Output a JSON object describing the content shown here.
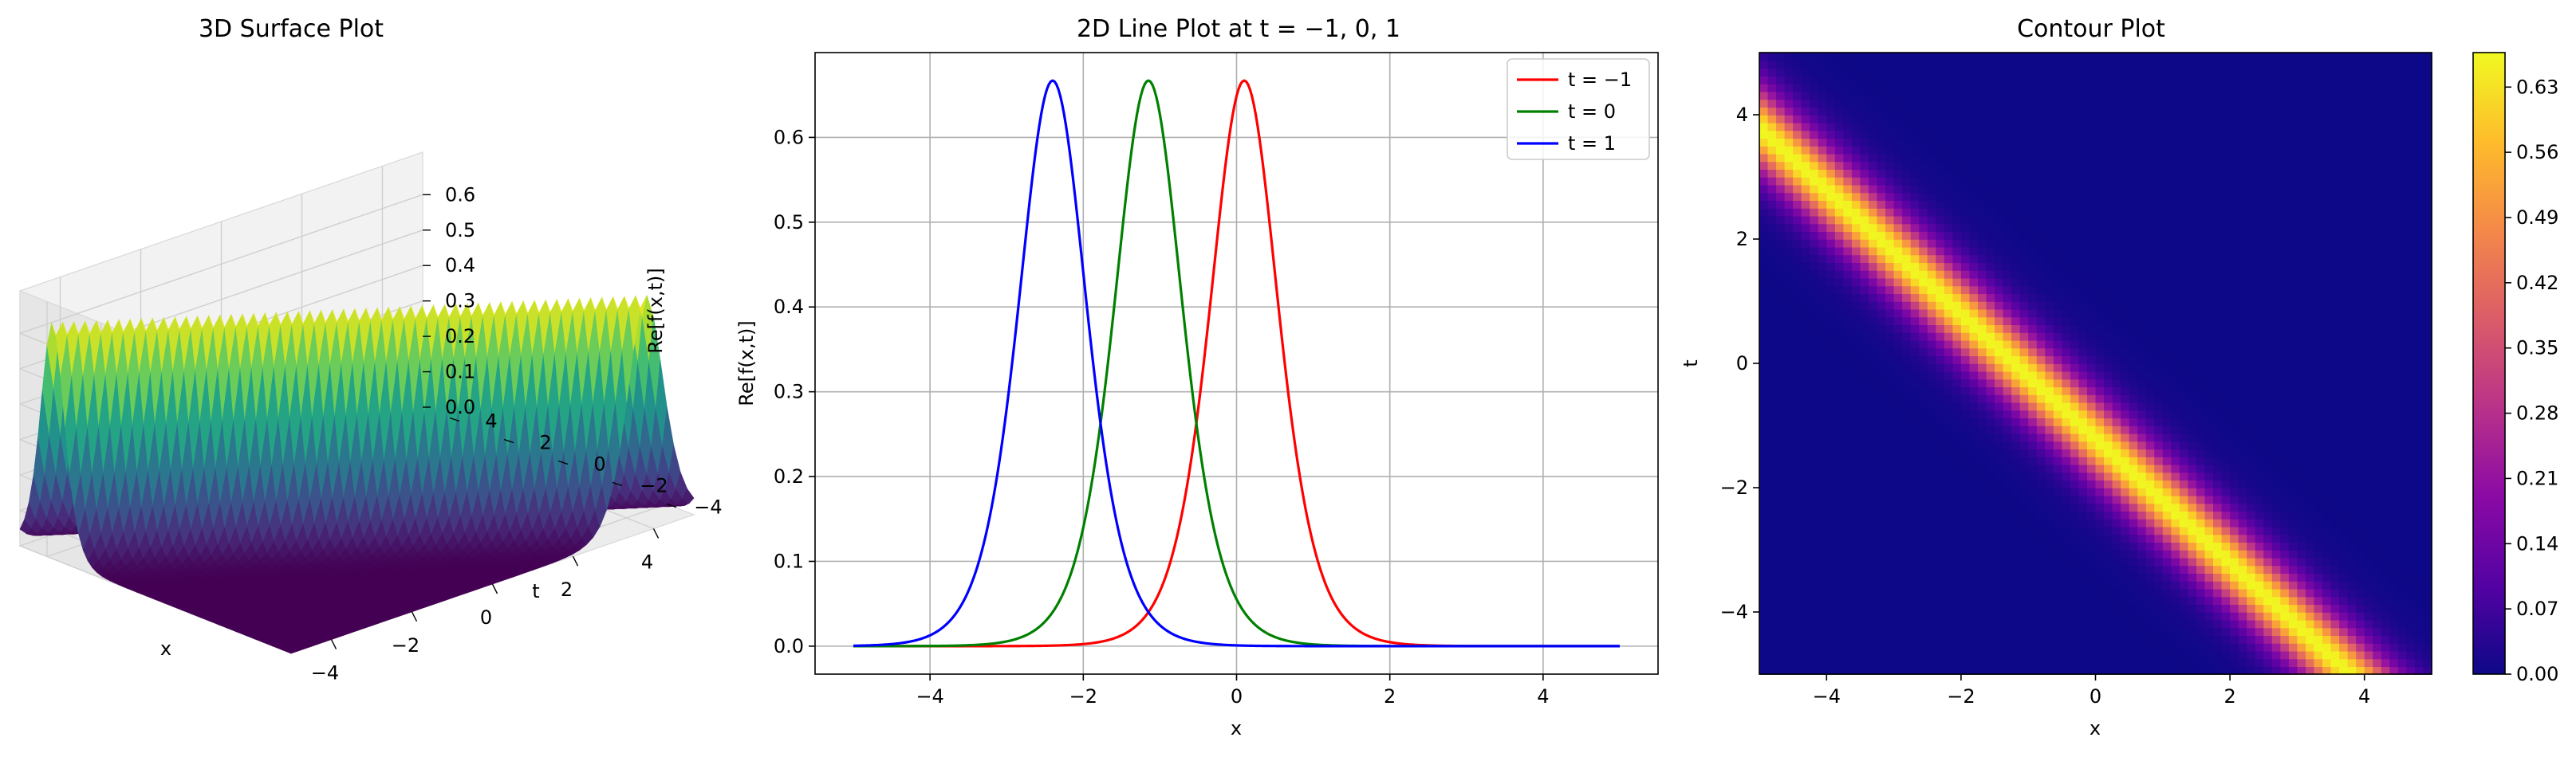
{
  "chart_data": [
    {
      "type": "surface",
      "title": "3D Surface Plot",
      "xlabel": "x",
      "ylabel": "t",
      "zlabel": "Re[f(x,t)]",
      "xlim": [
        -5,
        5
      ],
      "ylim": [
        -5,
        5
      ],
      "zlim": [
        0,
        0.667
      ],
      "x_ticks": [
        -4,
        -2,
        0,
        2,
        4
      ],
      "x_tick_labels": [
        "−4",
        "−2",
        "0",
        "2",
        "4"
      ],
      "y_ticks": [
        -4,
        -2,
        0,
        2,
        4
      ],
      "y_tick_labels": [
        "−4",
        "−2",
        "0",
        "2",
        "4"
      ],
      "z_ticks": [
        0.0,
        0.1,
        0.2,
        0.3,
        0.4,
        0.5,
        0.6
      ],
      "z_tick_labels": [
        "0.0",
        "0.1",
        "0.2",
        "0.3",
        "0.4",
        "0.5",
        "0.6"
      ],
      "colormap": "viridis",
      "function": {
        "amplitude": 0.667,
        "width": 0.6,
        "speed": 1.0,
        "offset": -1.2
      }
    },
    {
      "type": "line",
      "title": "2D Line Plot at t = −1, 0, 1",
      "xlabel": "x",
      "ylabel": "Re[f(x,t)]",
      "xlim": [
        -5.5,
        5.5
      ],
      "ylim": [
        -0.033,
        0.7
      ],
      "x_ticks": [
        -4,
        -2,
        0,
        2,
        4
      ],
      "x_tick_labels": [
        "−4",
        "−2",
        "0",
        "2",
        "4"
      ],
      "y_ticks": [
        0.0,
        0.1,
        0.2,
        0.3,
        0.4,
        0.5,
        0.6
      ],
      "y_tick_labels": [
        "0.0",
        "0.1",
        "0.2",
        "0.3",
        "0.4",
        "0.5",
        "0.6"
      ],
      "grid": true,
      "legend": "top-right",
      "x_range": [
        -5,
        5
      ],
      "series": [
        {
          "name": "t = −1",
          "color": "#ff0000",
          "peak_x": 0.1,
          "amplitude": 0.667,
          "width": 0.6
        },
        {
          "name": "t = 0",
          "color": "#008000",
          "peak_x": -1.15,
          "amplitude": 0.667,
          "width": 0.6
        },
        {
          "name": "t = 1",
          "color": "#0000ff",
          "peak_x": -2.4,
          "amplitude": 0.667,
          "width": 0.6
        }
      ]
    },
    {
      "type": "heatmap",
      "title": "Contour Plot",
      "xlabel": "x",
      "ylabel": "t",
      "xlim": [
        -5,
        5
      ],
      "ylim": [
        -5,
        5
      ],
      "x_ticks": [
        -4,
        -2,
        0,
        2,
        4
      ],
      "x_tick_labels": [
        "−4",
        "−2",
        "0",
        "2",
        "4"
      ],
      "y_ticks": [
        -4,
        -2,
        0,
        2,
        4
      ],
      "y_tick_labels": [
        "−4",
        "−2",
        "0",
        "2",
        "4"
      ],
      "colormap": "plasma",
      "colorbar_ticks": [
        0.0,
        0.07,
        0.14,
        0.21,
        0.28,
        0.35,
        0.42,
        0.49,
        0.56,
        0.63
      ],
      "colorbar_tick_labels": [
        "0.00",
        "0.07",
        "0.14",
        "0.21",
        "0.28",
        "0.35",
        "0.42",
        "0.49",
        "0.56",
        "0.63"
      ],
      "colorbar_range": [
        0,
        0.667
      ]
    }
  ]
}
